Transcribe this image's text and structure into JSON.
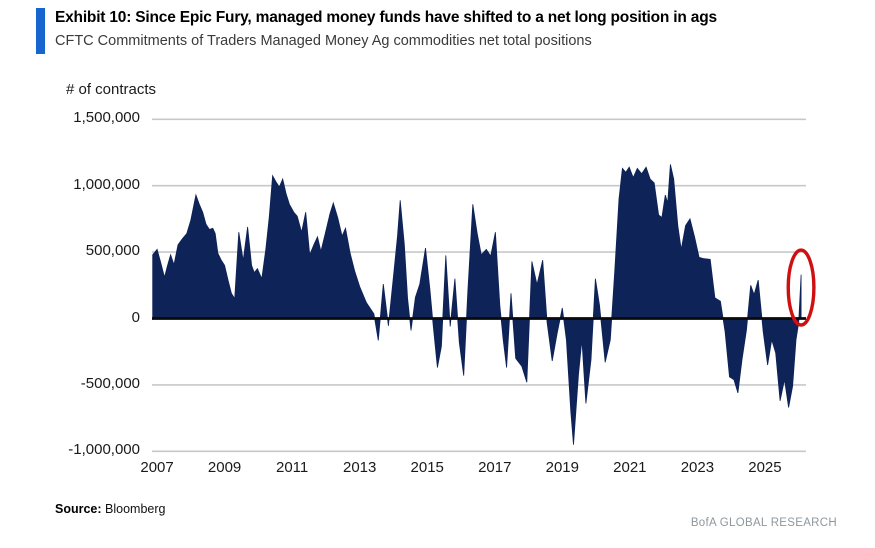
{
  "header": {
    "title": "Exhibit 10: Since Epic Fury, managed money funds have shifted to a net long position in ags",
    "subtitle": "CFTC Commitments of Traders Managed Money Ag commodities net total positions"
  },
  "footer": {
    "source_label": "Source:",
    "source_value": "Bloomberg",
    "brand": "BofA GLOBAL RESEARCH"
  },
  "chart_data": {
    "type": "area",
    "title": "CFTC Commitments of Traders Managed Money Ag commodities net total positions",
    "ylabel": "# of contracts",
    "xlabel": "",
    "legend": "none",
    "grid": "horizontal",
    "xlim": [
      2006.85,
      2026.69
    ],
    "ylim": [
      -1103000,
      1607500
    ],
    "x_ticks": [
      2007,
      2009,
      2011,
      2013,
      2015,
      2017,
      2019,
      2021,
      2023,
      2025
    ],
    "y_ticks": [
      1500000,
      1000000,
      500000,
      0,
      -500000,
      -1000000
    ],
    "colors": {
      "area": "#0e2357",
      "zero_line": "#0a0a0a",
      "gridline": "#c8c8c8",
      "highlight": "#cf1010",
      "accent_bar": "#1765cf",
      "brand_text": "#8e979e"
    },
    "annotations": [
      {
        "shape": "ellipse",
        "meaning": "latest reading circled: shift back to net long",
        "cx_year": 2026.07,
        "cy_value": 233000,
        "rx_years": 0.38,
        "ry_value": 282000
      }
    ],
    "series": [
      {
        "name": "Managed Money Ag net total positions",
        "units": "contracts",
        "points": [
          [
            2006.87,
            480000
          ],
          [
            2007.0,
            520000
          ],
          [
            2007.1,
            430000
          ],
          [
            2007.22,
            310000
          ],
          [
            2007.3,
            390000
          ],
          [
            2007.4,
            480000
          ],
          [
            2007.5,
            405000
          ],
          [
            2007.62,
            555000
          ],
          [
            2007.75,
            600000
          ],
          [
            2007.88,
            640000
          ],
          [
            2008.0,
            740000
          ],
          [
            2008.15,
            930000
          ],
          [
            2008.25,
            860000
          ],
          [
            2008.35,
            800000
          ],
          [
            2008.45,
            710000
          ],
          [
            2008.55,
            670000
          ],
          [
            2008.65,
            680000
          ],
          [
            2008.72,
            640000
          ],
          [
            2008.8,
            490000
          ],
          [
            2008.9,
            440000
          ],
          [
            2009.0,
            400000
          ],
          [
            2009.1,
            290000
          ],
          [
            2009.2,
            190000
          ],
          [
            2009.3,
            150000
          ],
          [
            2009.42,
            650000
          ],
          [
            2009.55,
            435000
          ],
          [
            2009.68,
            690000
          ],
          [
            2009.8,
            400000
          ],
          [
            2009.88,
            345000
          ],
          [
            2009.97,
            375000
          ],
          [
            2010.1,
            300000
          ],
          [
            2010.22,
            520000
          ],
          [
            2010.32,
            760000
          ],
          [
            2010.42,
            1075000
          ],
          [
            2010.52,
            1030000
          ],
          [
            2010.62,
            990000
          ],
          [
            2010.72,
            1050000
          ],
          [
            2010.82,
            940000
          ],
          [
            2010.92,
            860000
          ],
          [
            2011.05,
            800000
          ],
          [
            2011.15,
            770000
          ],
          [
            2011.28,
            650000
          ],
          [
            2011.4,
            800000
          ],
          [
            2011.52,
            480000
          ],
          [
            2011.65,
            560000
          ],
          [
            2011.75,
            615000
          ],
          [
            2011.85,
            505000
          ],
          [
            2012.0,
            660000
          ],
          [
            2012.12,
            790000
          ],
          [
            2012.22,
            870000
          ],
          [
            2012.35,
            760000
          ],
          [
            2012.48,
            620000
          ],
          [
            2012.58,
            680000
          ],
          [
            2012.72,
            490000
          ],
          [
            2012.85,
            360000
          ],
          [
            2013.0,
            240000
          ],
          [
            2013.2,
            120000
          ],
          [
            2013.42,
            35000
          ],
          [
            2013.55,
            -165000
          ],
          [
            2013.7,
            260000
          ],
          [
            2013.85,
            -55000
          ],
          [
            2014.0,
            320000
          ],
          [
            2014.12,
            620000
          ],
          [
            2014.2,
            890000
          ],
          [
            2014.32,
            560000
          ],
          [
            2014.42,
            150000
          ],
          [
            2014.52,
            -90000
          ],
          [
            2014.65,
            160000
          ],
          [
            2014.78,
            260000
          ],
          [
            2014.95,
            530000
          ],
          [
            2015.08,
            220000
          ],
          [
            2015.18,
            -60000
          ],
          [
            2015.3,
            -370000
          ],
          [
            2015.42,
            -210000
          ],
          [
            2015.55,
            475000
          ],
          [
            2015.68,
            -60000
          ],
          [
            2015.82,
            300000
          ],
          [
            2015.95,
            -180000
          ],
          [
            2016.08,
            -430000
          ],
          [
            2016.2,
            200000
          ],
          [
            2016.35,
            860000
          ],
          [
            2016.48,
            640000
          ],
          [
            2016.6,
            480000
          ],
          [
            2016.75,
            520000
          ],
          [
            2016.88,
            470000
          ],
          [
            2017.02,
            650000
          ],
          [
            2017.15,
            100000
          ],
          [
            2017.25,
            -160000
          ],
          [
            2017.35,
            -370000
          ],
          [
            2017.48,
            190000
          ],
          [
            2017.62,
            -300000
          ],
          [
            2017.8,
            -360000
          ],
          [
            2017.95,
            -480000
          ],
          [
            2018.1,
            430000
          ],
          [
            2018.25,
            255000
          ],
          [
            2018.42,
            440000
          ],
          [
            2018.55,
            -30000
          ],
          [
            2018.7,
            -320000
          ],
          [
            2018.85,
            -110000
          ],
          [
            2019.0,
            80000
          ],
          [
            2019.12,
            -160000
          ],
          [
            2019.25,
            -700000
          ],
          [
            2019.33,
            -950000
          ],
          [
            2019.48,
            -420000
          ],
          [
            2019.58,
            -160000
          ],
          [
            2019.7,
            -640000
          ],
          [
            2019.85,
            -310000
          ],
          [
            2019.98,
            300000
          ],
          [
            2020.1,
            100000
          ],
          [
            2020.27,
            -330000
          ],
          [
            2020.42,
            -160000
          ],
          [
            2020.55,
            350000
          ],
          [
            2020.68,
            900000
          ],
          [
            2020.78,
            1130000
          ],
          [
            2020.88,
            1100000
          ],
          [
            2020.98,
            1140000
          ],
          [
            2021.1,
            1060000
          ],
          [
            2021.22,
            1130000
          ],
          [
            2021.35,
            1090000
          ],
          [
            2021.48,
            1140000
          ],
          [
            2021.6,
            1050000
          ],
          [
            2021.72,
            1020000
          ],
          [
            2021.85,
            780000
          ],
          [
            2021.95,
            760000
          ],
          [
            2022.05,
            930000
          ],
          [
            2022.12,
            870000
          ],
          [
            2022.2,
            1160000
          ],
          [
            2022.3,
            1050000
          ],
          [
            2022.42,
            700000
          ],
          [
            2022.52,
            520000
          ],
          [
            2022.65,
            700000
          ],
          [
            2022.78,
            750000
          ],
          [
            2022.92,
            610000
          ],
          [
            2023.05,
            460000
          ],
          [
            2023.2,
            450000
          ],
          [
            2023.38,
            445000
          ],
          [
            2023.52,
            155000
          ],
          [
            2023.68,
            130000
          ],
          [
            2023.82,
            -100000
          ],
          [
            2023.95,
            -440000
          ],
          [
            2024.08,
            -460000
          ],
          [
            2024.2,
            -560000
          ],
          [
            2024.32,
            -310000
          ],
          [
            2024.45,
            -90000
          ],
          [
            2024.58,
            250000
          ],
          [
            2024.68,
            180000
          ],
          [
            2024.8,
            290000
          ],
          [
            2024.95,
            -100000
          ],
          [
            2025.08,
            -350000
          ],
          [
            2025.2,
            -160000
          ],
          [
            2025.32,
            -260000
          ],
          [
            2025.45,
            -620000
          ],
          [
            2025.58,
            -460000
          ],
          [
            2025.7,
            -670000
          ],
          [
            2025.82,
            -510000
          ],
          [
            2025.92,
            -160000
          ],
          [
            2026.0,
            -30000
          ],
          [
            2026.07,
            330000
          ]
        ]
      }
    ]
  }
}
